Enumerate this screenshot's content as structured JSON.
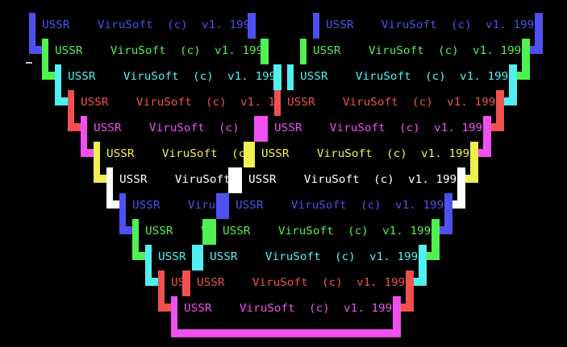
{
  "banner_text": "USSR    ViruSoft  (c)  v1. 1990",
  "boxes": [
    {
      "id": "left-1",
      "color": "#5050f0"
    },
    {
      "id": "left-2",
      "color": "#50f050"
    },
    {
      "id": "left-3",
      "color": "#50f0f0"
    },
    {
      "id": "left-4",
      "color": "#f05050"
    },
    {
      "id": "left-5",
      "color": "#f050f0"
    },
    {
      "id": "left-6",
      "color": "#f0f050"
    },
    {
      "id": "left-7",
      "color": "#ffffff"
    },
    {
      "id": "left-8",
      "color": "#5050f0"
    },
    {
      "id": "left-9",
      "color": "#50f050"
    },
    {
      "id": "left-10",
      "color": "#50f0f0"
    },
    {
      "id": "left-11",
      "color": "#f05050"
    },
    {
      "id": "right-1",
      "color": "#5050f0"
    },
    {
      "id": "right-2",
      "color": "#50f050"
    },
    {
      "id": "right-3",
      "color": "#50f0f0"
    },
    {
      "id": "right-4",
      "color": "#f05050"
    },
    {
      "id": "right-5",
      "color": "#f050f0"
    },
    {
      "id": "right-6",
      "color": "#f0f050"
    },
    {
      "id": "right-7",
      "color": "#ffffff"
    },
    {
      "id": "right-8",
      "color": "#5050f0"
    },
    {
      "id": "right-9",
      "color": "#50f050"
    },
    {
      "id": "right-10",
      "color": "#50f0f0"
    },
    {
      "id": "right-11",
      "color": "#f05050"
    },
    {
      "id": "right-12",
      "color": "#f050f0"
    }
  ]
}
